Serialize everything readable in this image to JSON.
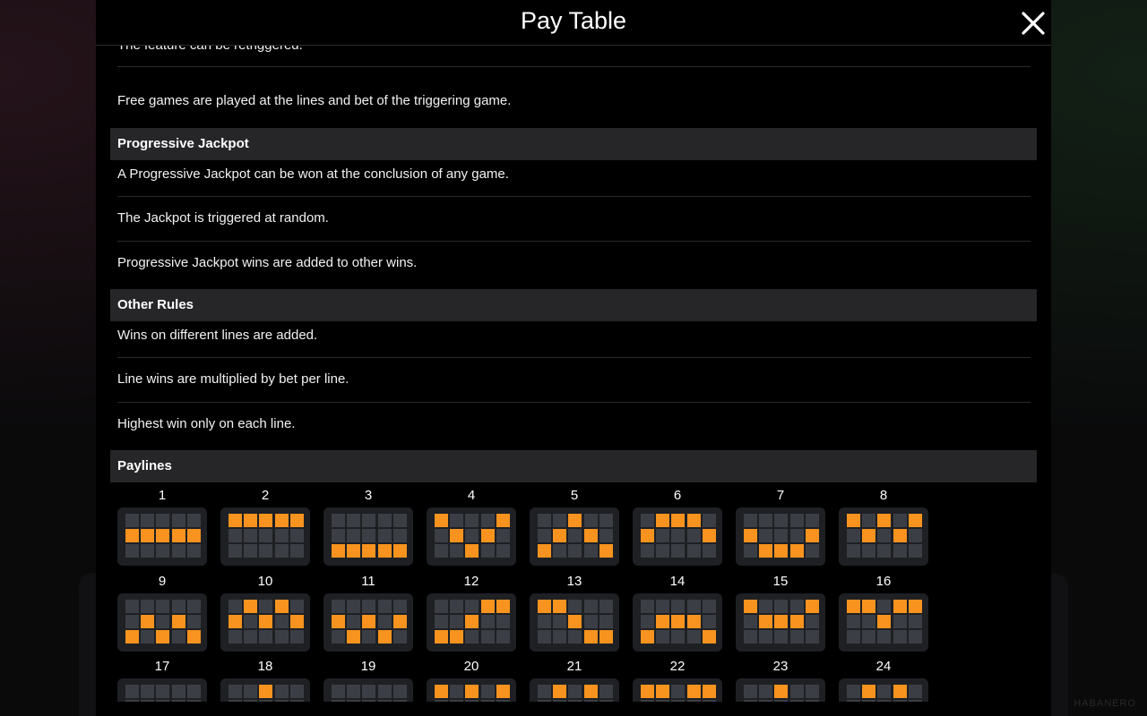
{
  "header": {
    "title": "Pay Table"
  },
  "brand": "HABANERO",
  "free_games_rows": [
    "The feature can be retriggered.",
    "Free games are played at the lines and bet of the triggering game."
  ],
  "progressive_jackpot": {
    "heading": "Progressive Jackpot",
    "rows": [
      "A Progressive Jackpot can be won at the conclusion of any game.",
      "The Jackpot is triggered at random.",
      "Progressive Jackpot wins are added to other wins."
    ]
  },
  "other_rules": {
    "heading": "Other Rules",
    "rows": [
      "Wins on different lines are added.",
      "Line wins are multiplied by bet per line.",
      "Highest win only on each line."
    ]
  },
  "paylines": {
    "heading": "Paylines",
    "active_color": "#f7931e",
    "inactive_color": "#3b3e44",
    "lines": [
      {
        "number": "1",
        "rows": [
          1,
          1,
          1,
          1,
          1
        ]
      },
      {
        "number": "2",
        "rows": [
          0,
          0,
          0,
          0,
          0
        ]
      },
      {
        "number": "3",
        "rows": [
          2,
          2,
          2,
          2,
          2
        ]
      },
      {
        "number": "4",
        "rows": [
          0,
          1,
          2,
          1,
          0
        ]
      },
      {
        "number": "5",
        "rows": [
          2,
          1,
          0,
          1,
          2
        ]
      },
      {
        "number": "6",
        "rows": [
          1,
          0,
          0,
          0,
          1
        ]
      },
      {
        "number": "7",
        "rows": [
          1,
          2,
          2,
          2,
          1
        ]
      },
      {
        "number": "8",
        "rows": [
          0,
          1,
          0,
          1,
          0
        ]
      },
      {
        "number": "9",
        "rows": [
          2,
          1,
          2,
          1,
          2
        ]
      },
      {
        "number": "10",
        "rows": [
          1,
          0,
          1,
          0,
          1
        ]
      },
      {
        "number": "11",
        "rows": [
          1,
          2,
          1,
          2,
          1
        ]
      },
      {
        "number": "12",
        "rows": [
          2,
          2,
          1,
          0,
          0
        ]
      },
      {
        "number": "13",
        "rows": [
          0,
          0,
          1,
          2,
          2
        ]
      },
      {
        "number": "14",
        "rows": [
          2,
          1,
          1,
          1,
          2
        ]
      },
      {
        "number": "15",
        "rows": [
          0,
          1,
          1,
          1,
          0
        ]
      },
      {
        "number": "16",
        "rows": [
          0,
          0,
          1,
          0,
          0
        ]
      },
      {
        "number": "17",
        "rows": [
          null,
          null,
          null,
          null,
          null
        ]
      },
      {
        "number": "18",
        "rows": [
          null,
          null,
          0,
          null,
          null
        ]
      },
      {
        "number": "19",
        "rows": [
          null,
          null,
          null,
          null,
          null
        ]
      },
      {
        "number": "20",
        "rows": [
          0,
          null,
          0,
          null,
          0
        ]
      },
      {
        "number": "21",
        "rows": [
          null,
          0,
          null,
          0,
          null
        ]
      },
      {
        "number": "22",
        "rows": [
          0,
          0,
          null,
          0,
          0
        ]
      },
      {
        "number": "23",
        "rows": [
          null,
          null,
          0,
          null,
          null
        ]
      },
      {
        "number": "24",
        "rows": [
          null,
          0,
          null,
          0,
          null
        ]
      }
    ]
  }
}
